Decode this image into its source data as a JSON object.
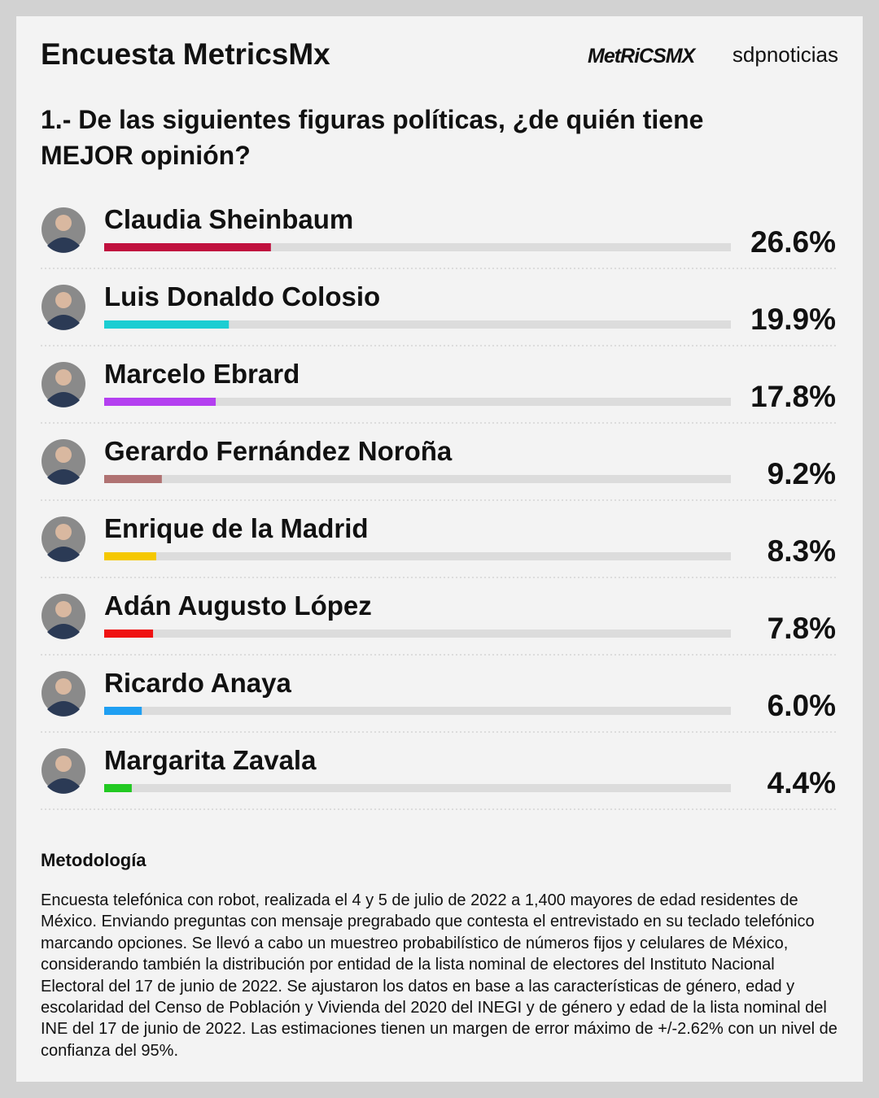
{
  "chart_data": {
    "type": "bar",
    "orientation": "horizontal",
    "title": "Encuesta MetricsMx",
    "logos": [
      "MetRiCSMX",
      "sdpnoticias"
    ],
    "subtitle": "1.- De las siguientes figuras políticas, ¿de quién tiene MEJOR opinión?",
    "categories": [
      "Claudia Sheinbaum",
      "Luis Donaldo Colosio",
      "Marcelo Ebrard",
      "Gerardo Fernández Noroña",
      "Enrique de la Madrid",
      "Adán Augusto López",
      "Ricardo Anaya",
      "Margarita Zavala"
    ],
    "values": [
      26.6,
      19.9,
      17.8,
      9.2,
      8.3,
      7.8,
      6.0,
      4.4
    ],
    "value_labels": [
      "26.6%",
      "19.9%",
      "17.8%",
      "9.2%",
      "8.3%",
      "7.8%",
      "6.0%",
      "4.4%"
    ],
    "colors": [
      "#c0103e",
      "#1ccdd2",
      "#b43ff0",
      "#b07272",
      "#f5c800",
      "#ef1111",
      "#1f9ff2",
      "#22c922"
    ],
    "xlim": [
      0,
      100
    ]
  },
  "methodology": {
    "heading": "Metodología",
    "text": "Encuesta telefónica con robot, realizada el 4 y 5 de julio de 2022 a 1,400 mayores de edad residentes de México. Enviando preguntas con mensaje pregrabado que contesta el entrevistado en su teclado telefónico marcando opciones. Se llevó a cabo un muestreo probabilístico de números fijos y celulares de México, considerando también la distribución por entidad de la lista nominal de electores del Instituto Nacional Electoral del 17 de junio de 2022. Se ajustaron los datos en base a las características de género, edad y escolaridad del Censo de Población y Vivienda del 2020 del INEGI y de género y edad de la lista nominal del INE del 17 de junio de 2022. Las estimaciones tienen un margen de error máximo de +/-2.62% con un nivel de confianza del 95%."
  }
}
